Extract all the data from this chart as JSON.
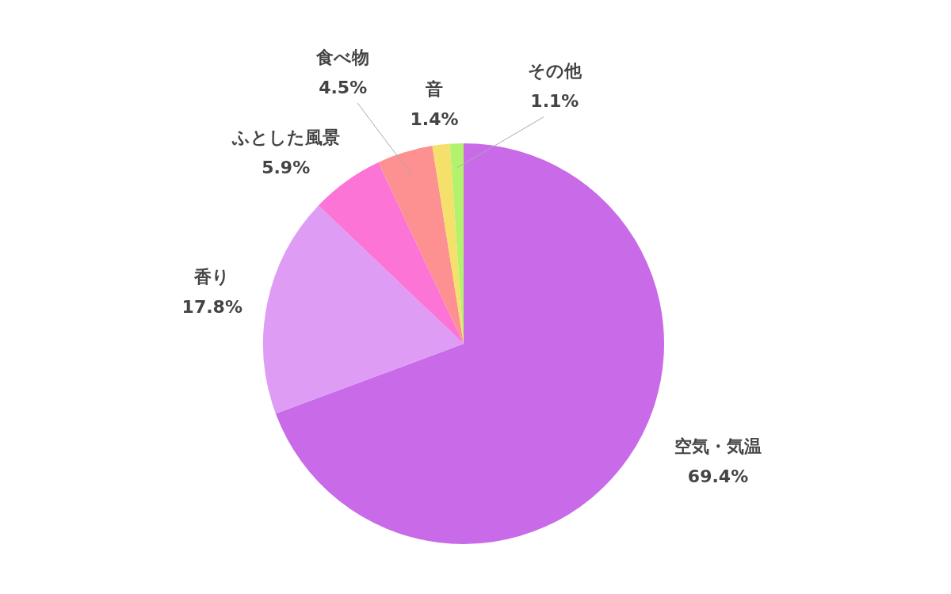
{
  "chart_data": {
    "type": "pie",
    "categories": [
      "空気・気温",
      "香り",
      "ふとした風景",
      "食べ物",
      "音",
      "その他"
    ],
    "values": [
      69.4,
      17.8,
      5.9,
      4.5,
      1.4,
      1.1
    ],
    "colors": [
      "#c96ae8",
      "#df9cf5",
      "#fc74d6",
      "#fd9090",
      "#f5e06b",
      "#b4f26e"
    ],
    "value_labels": [
      "69.4%",
      "17.8%",
      "5.9%",
      "4.5%",
      "1.4%",
      "1.1%"
    ]
  }
}
